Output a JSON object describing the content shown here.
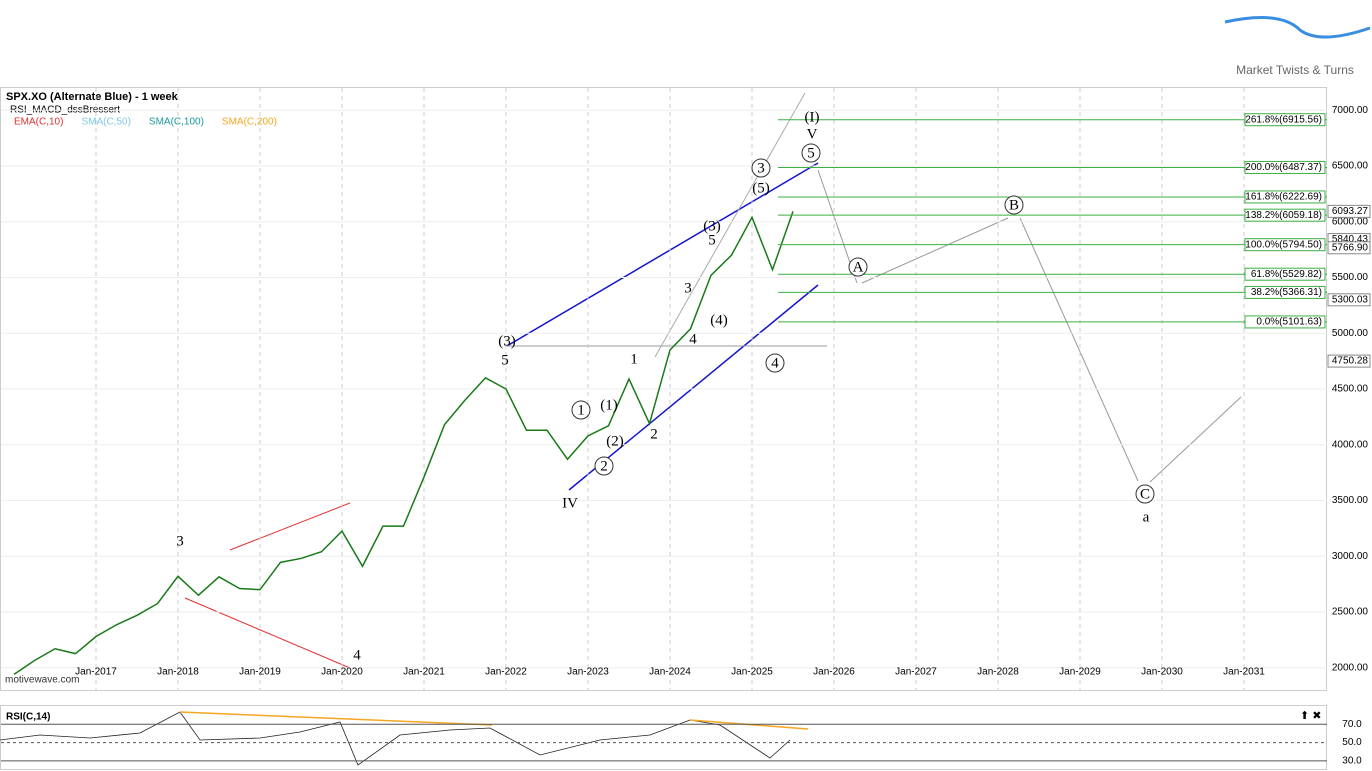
{
  "brand": "Market Twists & Turns",
  "chart": {
    "title": "SPX.XO (Alternate Blue) - 1 week",
    "study": "RSI_MACD_dssBressert",
    "indicators": [
      {
        "name": "EMA(C,10)",
        "color": "#e03030"
      },
      {
        "name": "SMA(C,50)",
        "color": "#7fc8e8"
      },
      {
        "name": "SMA(C,100)",
        "color": "#1a9a9a"
      },
      {
        "name": "SMA(C,200)",
        "color": "#f5a623"
      }
    ],
    "watermark": "motivewave.com",
    "ylim": [
      1800,
      7200
    ],
    "yticks": [
      {
        "value": 2000,
        "label": "2000.00"
      },
      {
        "value": 2500,
        "label": "2500.00"
      },
      {
        "value": 3000,
        "label": "3000.00"
      },
      {
        "value": 3500,
        "label": "3500.00"
      },
      {
        "value": 4000,
        "label": "4000.00"
      },
      {
        "value": 4500,
        "label": "4500.00"
      },
      {
        "value": 5000,
        "label": "5000.00"
      },
      {
        "value": 5500,
        "label": "5500.00"
      },
      {
        "value": 6000,
        "label": "6000.00"
      },
      {
        "value": 6500,
        "label": "6500.00"
      },
      {
        "value": 7000,
        "label": "7000.00"
      }
    ],
    "price_labels": [
      {
        "value": 6093.27,
        "label": "6093.27"
      },
      {
        "value": 5840.43,
        "label": "5840.43"
      },
      {
        "value": 5766.9,
        "label": "5766.90"
      },
      {
        "value": 5300.03,
        "label": "5300.03"
      },
      {
        "value": 4750.28,
        "label": "4750.28"
      }
    ],
    "xticks": [
      "Jan-2017",
      "Jan-2018",
      "Jan-2019",
      "Jan-2020",
      "Jan-2021",
      "Jan-2022",
      "Jan-2023",
      "Jan-2024",
      "Jan-2025",
      "Jan-2026",
      "Jan-2027",
      "Jan-2028",
      "Jan-2029",
      "Jan-2030",
      "Jan-2031"
    ],
    "price": [
      1940,
      2065,
      2170,
      2126,
      2280,
      2385,
      2470,
      2575,
      2820,
      2650,
      2815,
      2710,
      2700,
      2945,
      2980,
      3040,
      3225,
      2910,
      3270,
      3270,
      3710,
      4180,
      4400,
      4600,
      4500,
      4130,
      4130,
      3870,
      4080,
      4170,
      4590,
      4190,
      4850,
      5040,
      5520,
      5700,
      6040,
      5570,
      6093
    ],
    "fib_levels": [
      {
        "value": 6915.56,
        "label": "261.8%(6915.56)"
      },
      {
        "value": 6487.37,
        "label": "200.0%(6487.37)"
      },
      {
        "value": 6222.69,
        "label": "161.8%(6222.69)"
      },
      {
        "value": 6059.18,
        "label": "138.2%(6059.18)"
      },
      {
        "value": 5794.5,
        "label": "100.0%(5794.50)"
      },
      {
        "value": 5529.82,
        "label": "61.8%(5529.82)"
      },
      {
        "value": 5366.31,
        "label": "38.2%(5366.31)"
      },
      {
        "value": 5101.63,
        "label": "0.0%(5101.63)"
      }
    ],
    "waves": [
      "(I)",
      "V",
      "3",
      "5",
      "(5)",
      "(3)",
      "5",
      "3",
      "(4)",
      "4",
      "1",
      "(3)",
      "5",
      "1",
      "(1)",
      "(2)",
      "2",
      "2",
      "IV",
      "3",
      "4",
      "4",
      "A",
      "B",
      "C",
      "a"
    ],
    "rsi": {
      "title": "RSI(C,14)",
      "yticks": [
        {
          "value": 70,
          "label": "70.0"
        },
        {
          "value": 50,
          "label": "50.0"
        },
        {
          "value": 30,
          "label": "30.0"
        }
      ]
    }
  }
}
